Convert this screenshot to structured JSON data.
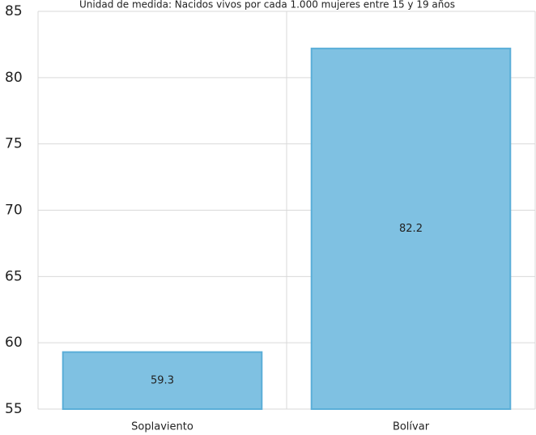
{
  "chart_data": {
    "type": "bar",
    "subtitle": "Unidad de medida: Nacidos vivos por cada 1.000 mujeres entre 15 y 19 años",
    "categories": [
      "Soplaviento",
      "Bolívar"
    ],
    "values": [
      59.3,
      82.2
    ],
    "color": "#7fc1e2",
    "ylim": [
      55,
      85
    ],
    "yticks": [
      55,
      60,
      65,
      70,
      75,
      80,
      85
    ],
    "grid": true
  }
}
